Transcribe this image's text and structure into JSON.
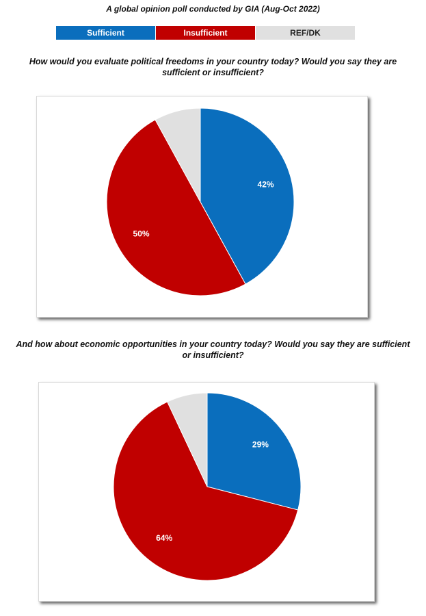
{
  "title": "A global opinion poll conducted by GIA (Aug-Oct 2022)",
  "legend": {
    "labels": [
      "Sufficient",
      "Insufficient",
      "REF/DK"
    ],
    "colors": [
      "#0a6ebd",
      "#c00000",
      "#e0e0e0"
    ]
  },
  "chart_data": [
    {
      "type": "pie",
      "title": "How would you evaluate political freedoms in your country today?  Would you say they are sufficient or insufficient?",
      "values": [
        42,
        50,
        8
      ],
      "value_labels": [
        "42%",
        "50%",
        null
      ]
    },
    {
      "type": "pie",
      "title": "And how about economic opportunities in your country today?  Would you say they are sufficient or insufficient?",
      "values": [
        29,
        64,
        7
      ],
      "value_labels": [
        "29%",
        "64%",
        null
      ]
    }
  ]
}
